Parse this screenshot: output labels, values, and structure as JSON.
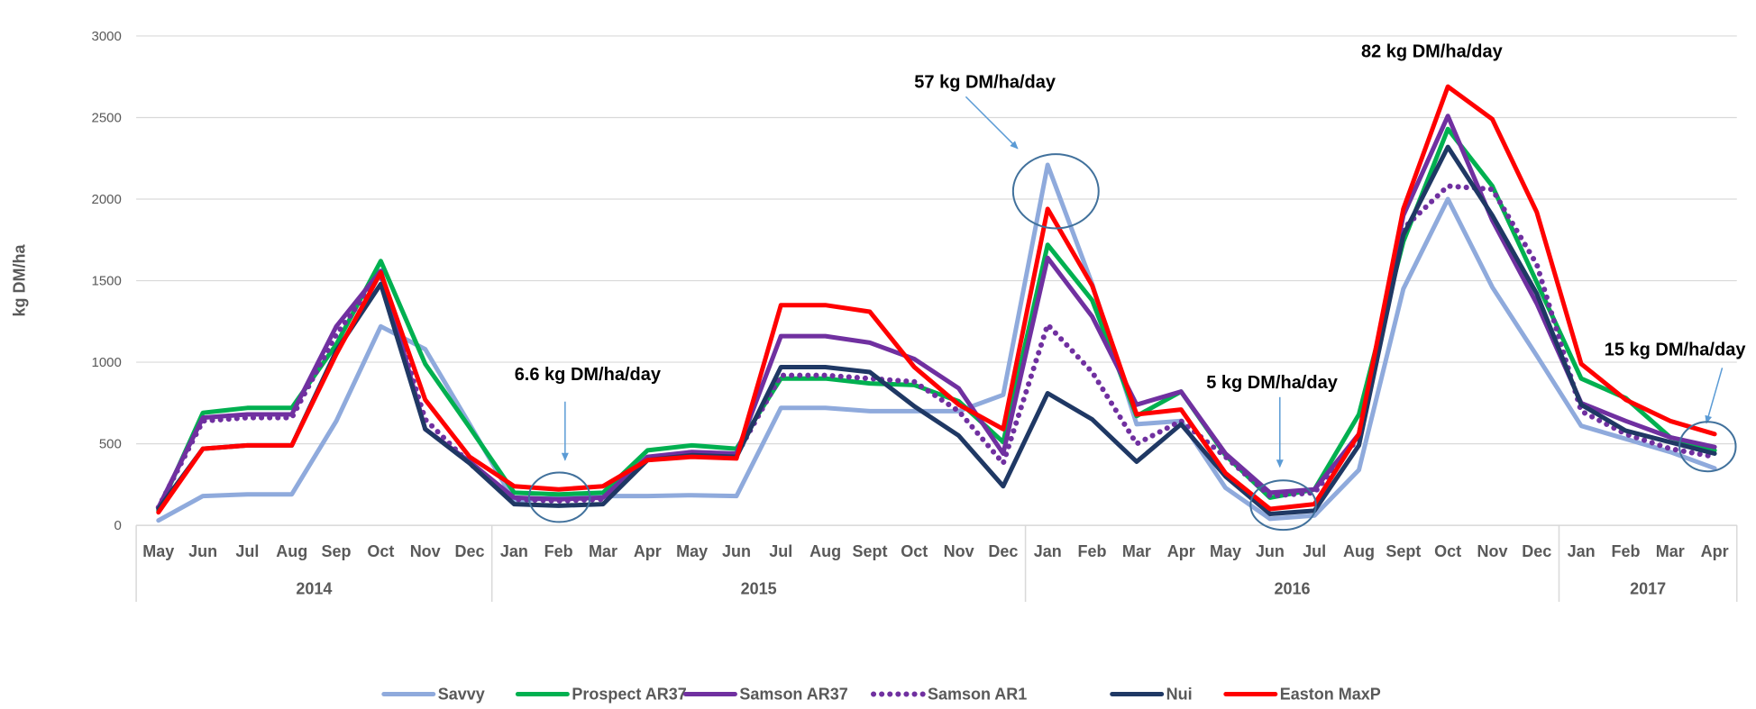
{
  "chart_data": {
    "type": "line",
    "ylabel": "kg DM/ha",
    "ylim": [
      0,
      3000
    ],
    "yticks": [
      0,
      500,
      1000,
      1500,
      2000,
      2500,
      3000
    ],
    "grid": "horizontal",
    "legend_position": "bottom",
    "categories": [
      "May",
      "Jun",
      "Jul",
      "Aug",
      "Sep",
      "Oct",
      "Nov",
      "Dec",
      "Jan",
      "Feb",
      "Mar",
      "Apr",
      "May",
      "Jun",
      "Jul",
      "Aug",
      "Sept",
      "Oct",
      "Nov",
      "Dec",
      "Jan",
      "Feb",
      "Mar",
      "Apr",
      "May",
      "Jun",
      "Jul",
      "Aug",
      "Sept",
      "Oct",
      "Nov",
      "Dec",
      "Jan",
      "Feb",
      "Mar",
      "Apr"
    ],
    "years": [
      {
        "label": "2014",
        "start": 0,
        "end": 7
      },
      {
        "label": "2015",
        "start": 8,
        "end": 19
      },
      {
        "label": "2016",
        "start": 20,
        "end": 31
      },
      {
        "label": "2017",
        "start": 32,
        "end": 35
      }
    ],
    "series": [
      {
        "name": "Savvy",
        "color": "#8faadc",
        "dash": "solid",
        "values": [
          30,
          180,
          190,
          190,
          640,
          1220,
          1080,
          620,
          150,
          170,
          180,
          180,
          185,
          180,
          720,
          720,
          700,
          700,
          700,
          800,
          2210,
          1480,
          620,
          640,
          230,
          40,
          60,
          340,
          1450,
          2000,
          1460,
          1040,
          610,
          530,
          450,
          350
        ]
      },
      {
        "name": "Prospect AR37",
        "color": "#00b050",
        "dash": "solid",
        "values": [
          90,
          690,
          720,
          720,
          1110,
          1620,
          990,
          600,
          200,
          190,
          200,
          460,
          490,
          470,
          900,
          900,
          870,
          860,
          760,
          510,
          1720,
          1380,
          670,
          820,
          430,
          170,
          220,
          680,
          1740,
          2430,
          2080,
          1490,
          900,
          780,
          540,
          460
        ]
      },
      {
        "name": "Samson AR37",
        "color": "#7030a0",
        "dash": "solid",
        "values": [
          110,
          660,
          680,
          680,
          1220,
          1560,
          590,
          390,
          170,
          160,
          170,
          420,
          450,
          440,
          1160,
          1160,
          1120,
          1020,
          840,
          440,
          1640,
          1280,
          740,
          820,
          440,
          200,
          220,
          560,
          1900,
          2510,
          1870,
          1360,
          750,
          640,
          540,
          480
        ]
      },
      {
        "name": "Samson AR1",
        "color": "#7030a0",
        "dash": "dotted",
        "values": [
          110,
          640,
          660,
          660,
          1170,
          1540,
          650,
          380,
          160,
          150,
          160,
          410,
          440,
          430,
          920,
          920,
          900,
          880,
          700,
          380,
          1230,
          940,
          500,
          640,
          420,
          180,
          200,
          540,
          1820,
          2080,
          2060,
          1600,
          700,
          560,
          470,
          420
        ]
      },
      {
        "name": "Nui",
        "color": "#1f3864",
        "dash": "solid",
        "values": [
          100,
          470,
          490,
          490,
          1070,
          1480,
          590,
          380,
          130,
          120,
          130,
          400,
          430,
          420,
          970,
          970,
          940,
          730,
          550,
          240,
          810,
          650,
          390,
          620,
          300,
          70,
          90,
          490,
          1780,
          2320,
          1900,
          1420,
          740,
          580,
          510,
          440
        ]
      },
      {
        "name": "Easton MaxP",
        "color": "#ff0000",
        "dash": "solid",
        "values": [
          80,
          470,
          490,
          490,
          1050,
          1550,
          770,
          420,
          240,
          220,
          240,
          400,
          420,
          410,
          1350,
          1350,
          1310,
          970,
          740,
          590,
          1940,
          1470,
          680,
          710,
          320,
          100,
          130,
          560,
          1940,
          2690,
          2490,
          1920,
          990,
          770,
          640,
          560
        ]
      }
    ],
    "annotations": [
      {
        "text": "6.6 kg DM/ha/day"
      },
      {
        "text": "57 kg DM/ha/day"
      },
      {
        "text": "5 kg DM/ha/day"
      },
      {
        "text": "82 kg DM/ha/day"
      },
      {
        "text": "15 kg DM/ha/day"
      }
    ]
  }
}
